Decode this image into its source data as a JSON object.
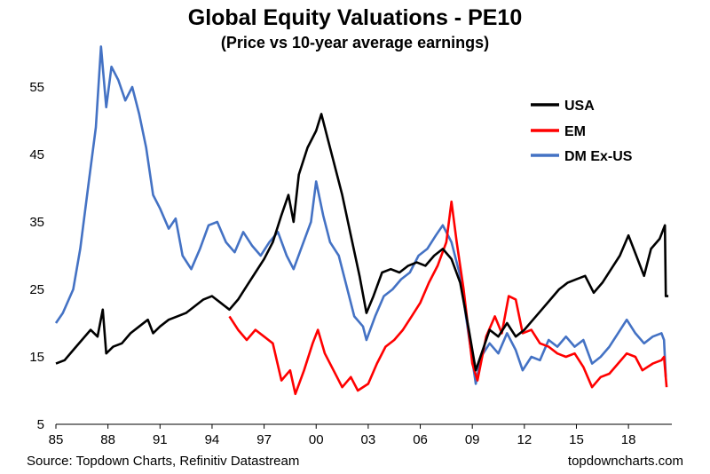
{
  "chart_data": {
    "type": "line",
    "title": "Global Equity Valuations - PE10",
    "subtitle": "(Price vs 10-year average earnings)",
    "xlabel": "",
    "ylabel": "",
    "xlim": [
      1985,
      2020.5
    ],
    "ylim": [
      5,
      60
    ],
    "y_ticks": [
      5,
      15,
      25,
      35,
      45,
      55
    ],
    "x_ticks": [
      {
        "value": 1985,
        "label": "85"
      },
      {
        "value": 1988,
        "label": "88"
      },
      {
        "value": 1991,
        "label": "91"
      },
      {
        "value": 1994,
        "label": "94"
      },
      {
        "value": 1997,
        "label": "97"
      },
      {
        "value": 2000,
        "label": "00"
      },
      {
        "value": 2003,
        "label": "03"
      },
      {
        "value": 2006,
        "label": "06"
      },
      {
        "value": 2009,
        "label": "09"
      },
      {
        "value": 2012,
        "label": "12"
      },
      {
        "value": 2015,
        "label": "15"
      },
      {
        "value": 2018,
        "label": "18"
      }
    ],
    "grid": false,
    "legend_position": "top-right",
    "series": [
      {
        "name": "USA",
        "color": "#000000",
        "points": [
          [
            1985.0,
            14
          ],
          [
            1985.5,
            14.5
          ],
          [
            1986.0,
            16
          ],
          [
            1986.5,
            17.5
          ],
          [
            1987.0,
            19
          ],
          [
            1987.4,
            18
          ],
          [
            1987.7,
            22
          ],
          [
            1987.9,
            15.5
          ],
          [
            1988.3,
            16.5
          ],
          [
            1988.8,
            17
          ],
          [
            1989.3,
            18.5
          ],
          [
            1989.8,
            19.5
          ],
          [
            1990.3,
            20.5
          ],
          [
            1990.6,
            18.5
          ],
          [
            1991.0,
            19.5
          ],
          [
            1991.5,
            20.5
          ],
          [
            1992.0,
            21
          ],
          [
            1992.5,
            21.5
          ],
          [
            1993.0,
            22.5
          ],
          [
            1993.5,
            23.5
          ],
          [
            1994.0,
            24
          ],
          [
            1994.5,
            23
          ],
          [
            1995.0,
            22
          ],
          [
            1995.5,
            23.5
          ],
          [
            1996.0,
            25.5
          ],
          [
            1996.5,
            27.5
          ],
          [
            1997.0,
            29.5
          ],
          [
            1997.5,
            32
          ],
          [
            1998.0,
            36
          ],
          [
            1998.4,
            39
          ],
          [
            1998.7,
            35
          ],
          [
            1999.0,
            42
          ],
          [
            1999.5,
            46
          ],
          [
            2000.0,
            48.5
          ],
          [
            2000.3,
            51
          ],
          [
            2000.7,
            47
          ],
          [
            2001.0,
            44
          ],
          [
            2001.5,
            39
          ],
          [
            2002.0,
            33
          ],
          [
            2002.5,
            27
          ],
          [
            2002.9,
            21.5
          ],
          [
            2003.3,
            24
          ],
          [
            2003.8,
            27.5
          ],
          [
            2004.3,
            28
          ],
          [
            2004.8,
            27.5
          ],
          [
            2005.3,
            28.5
          ],
          [
            2005.8,
            29
          ],
          [
            2006.3,
            28.5
          ],
          [
            2006.8,
            30
          ],
          [
            2007.3,
            31
          ],
          [
            2007.8,
            29.5
          ],
          [
            2008.3,
            26
          ],
          [
            2008.8,
            19
          ],
          [
            2009.2,
            13
          ],
          [
            2009.6,
            16
          ],
          [
            2010.0,
            19
          ],
          [
            2010.5,
            18
          ],
          [
            2011.0,
            20
          ],
          [
            2011.5,
            18
          ],
          [
            2012.0,
            19
          ],
          [
            2012.5,
            20.5
          ],
          [
            2013.0,
            22
          ],
          [
            2013.5,
            23.5
          ],
          [
            2014.0,
            25
          ],
          [
            2014.5,
            26
          ],
          [
            2015.0,
            26.5
          ],
          [
            2015.5,
            27
          ],
          [
            2016.0,
            24.5
          ],
          [
            2016.5,
            26
          ],
          [
            2017.0,
            28
          ],
          [
            2017.5,
            30
          ],
          [
            2018.0,
            33
          ],
          [
            2018.3,
            31
          ],
          [
            2018.9,
            27
          ],
          [
            2019.3,
            31
          ],
          [
            2019.8,
            32.5
          ],
          [
            2020.1,
            34.5
          ],
          [
            2020.15,
            24
          ],
          [
            2020.3,
            24
          ]
        ]
      },
      {
        "name": "EM",
        "color": "#ff0000",
        "points": [
          [
            1995.0,
            21
          ],
          [
            1995.5,
            19
          ],
          [
            1996.0,
            17.5
          ],
          [
            1996.5,
            19
          ],
          [
            1997.0,
            18
          ],
          [
            1997.5,
            17
          ],
          [
            1998.0,
            11.5
          ],
          [
            1998.5,
            13
          ],
          [
            1998.8,
            9.5
          ],
          [
            1999.3,
            13
          ],
          [
            1999.8,
            17
          ],
          [
            2000.1,
            19
          ],
          [
            2000.5,
            15.5
          ],
          [
            2001.0,
            13
          ],
          [
            2001.5,
            10.5
          ],
          [
            2002.0,
            12
          ],
          [
            2002.4,
            10
          ],
          [
            2003.0,
            11
          ],
          [
            2003.5,
            14
          ],
          [
            2004.0,
            16.5
          ],
          [
            2004.5,
            17.5
          ],
          [
            2005.0,
            19
          ],
          [
            2005.5,
            21
          ],
          [
            2006.0,
            23
          ],
          [
            2006.5,
            26
          ],
          [
            2007.0,
            28.5
          ],
          [
            2007.5,
            32
          ],
          [
            2007.8,
            38
          ],
          [
            2008.1,
            32
          ],
          [
            2008.5,
            25
          ],
          [
            2009.0,
            14
          ],
          [
            2009.3,
            11.5
          ],
          [
            2009.8,
            18
          ],
          [
            2010.3,
            21
          ],
          [
            2010.7,
            18.5
          ],
          [
            2011.1,
            24
          ],
          [
            2011.5,
            23.5
          ],
          [
            2011.9,
            18.5
          ],
          [
            2012.4,
            19
          ],
          [
            2012.9,
            17
          ],
          [
            2013.4,
            16.5
          ],
          [
            2013.9,
            15.5
          ],
          [
            2014.4,
            15
          ],
          [
            2014.9,
            15.5
          ],
          [
            2015.4,
            13.5
          ],
          [
            2015.9,
            10.5
          ],
          [
            2016.4,
            12
          ],
          [
            2016.9,
            12.5
          ],
          [
            2017.4,
            14
          ],
          [
            2017.9,
            15.5
          ],
          [
            2018.4,
            15
          ],
          [
            2018.8,
            13
          ],
          [
            2019.4,
            14
          ],
          [
            2019.9,
            14.5
          ],
          [
            2020.05,
            15
          ],
          [
            2020.2,
            10.5
          ]
        ]
      },
      {
        "name": "DM Ex-US",
        "color": "#4472c4",
        "points": [
          [
            1985.0,
            20
          ],
          [
            1985.4,
            21.5
          ],
          [
            1986.0,
            25
          ],
          [
            1986.4,
            31
          ],
          [
            1986.9,
            41
          ],
          [
            1987.3,
            49
          ],
          [
            1987.6,
            61
          ],
          [
            1987.9,
            52
          ],
          [
            1988.2,
            58
          ],
          [
            1988.6,
            56
          ],
          [
            1989.0,
            53
          ],
          [
            1989.4,
            55
          ],
          [
            1989.8,
            51
          ],
          [
            1990.2,
            46
          ],
          [
            1990.6,
            39
          ],
          [
            1991.0,
            37
          ],
          [
            1991.5,
            34
          ],
          [
            1991.9,
            35.5
          ],
          [
            1992.3,
            30
          ],
          [
            1992.8,
            28
          ],
          [
            1993.3,
            31
          ],
          [
            1993.8,
            34.5
          ],
          [
            1994.3,
            35
          ],
          [
            1994.8,
            32
          ],
          [
            1995.3,
            30.5
          ],
          [
            1995.8,
            33.5
          ],
          [
            1996.3,
            31.5
          ],
          [
            1996.8,
            30
          ],
          [
            1997.3,
            32
          ],
          [
            1997.8,
            33.5
          ],
          [
            1998.3,
            30
          ],
          [
            1998.7,
            28
          ],
          [
            1999.2,
            31.5
          ],
          [
            1999.7,
            35
          ],
          [
            2000.0,
            41
          ],
          [
            2000.4,
            36
          ],
          [
            2000.8,
            32
          ],
          [
            2001.3,
            30
          ],
          [
            2001.7,
            26
          ],
          [
            2002.2,
            21
          ],
          [
            2002.7,
            19.5
          ],
          [
            2002.9,
            17.5
          ],
          [
            2003.4,
            21
          ],
          [
            2003.9,
            24
          ],
          [
            2004.4,
            25
          ],
          [
            2004.9,
            26.5
          ],
          [
            2005.4,
            27.5
          ],
          [
            2005.9,
            30
          ],
          [
            2006.4,
            31
          ],
          [
            2006.9,
            33
          ],
          [
            2007.3,
            34.5
          ],
          [
            2007.8,
            32
          ],
          [
            2008.3,
            27
          ],
          [
            2008.8,
            18
          ],
          [
            2009.2,
            11
          ],
          [
            2009.5,
            15
          ],
          [
            2010.0,
            17
          ],
          [
            2010.5,
            15.5
          ],
          [
            2011.0,
            18.5
          ],
          [
            2011.5,
            16
          ],
          [
            2011.9,
            13
          ],
          [
            2012.4,
            15
          ],
          [
            2012.9,
            14.5
          ],
          [
            2013.4,
            17.5
          ],
          [
            2013.9,
            16.5
          ],
          [
            2014.4,
            18
          ],
          [
            2014.9,
            16.5
          ],
          [
            2015.4,
            17.5
          ],
          [
            2015.9,
            14
          ],
          [
            2016.4,
            15
          ],
          [
            2016.9,
            16.5
          ],
          [
            2017.4,
            18.5
          ],
          [
            2017.9,
            20.5
          ],
          [
            2018.4,
            18.5
          ],
          [
            2018.9,
            17
          ],
          [
            2019.4,
            18
          ],
          [
            2019.9,
            18.5
          ],
          [
            2020.05,
            17.5
          ],
          [
            2020.15,
            12
          ]
        ]
      }
    ],
    "source": "Source: Topdown Charts, Refinitiv Datastream",
    "watermark": "topdowncharts.com"
  }
}
